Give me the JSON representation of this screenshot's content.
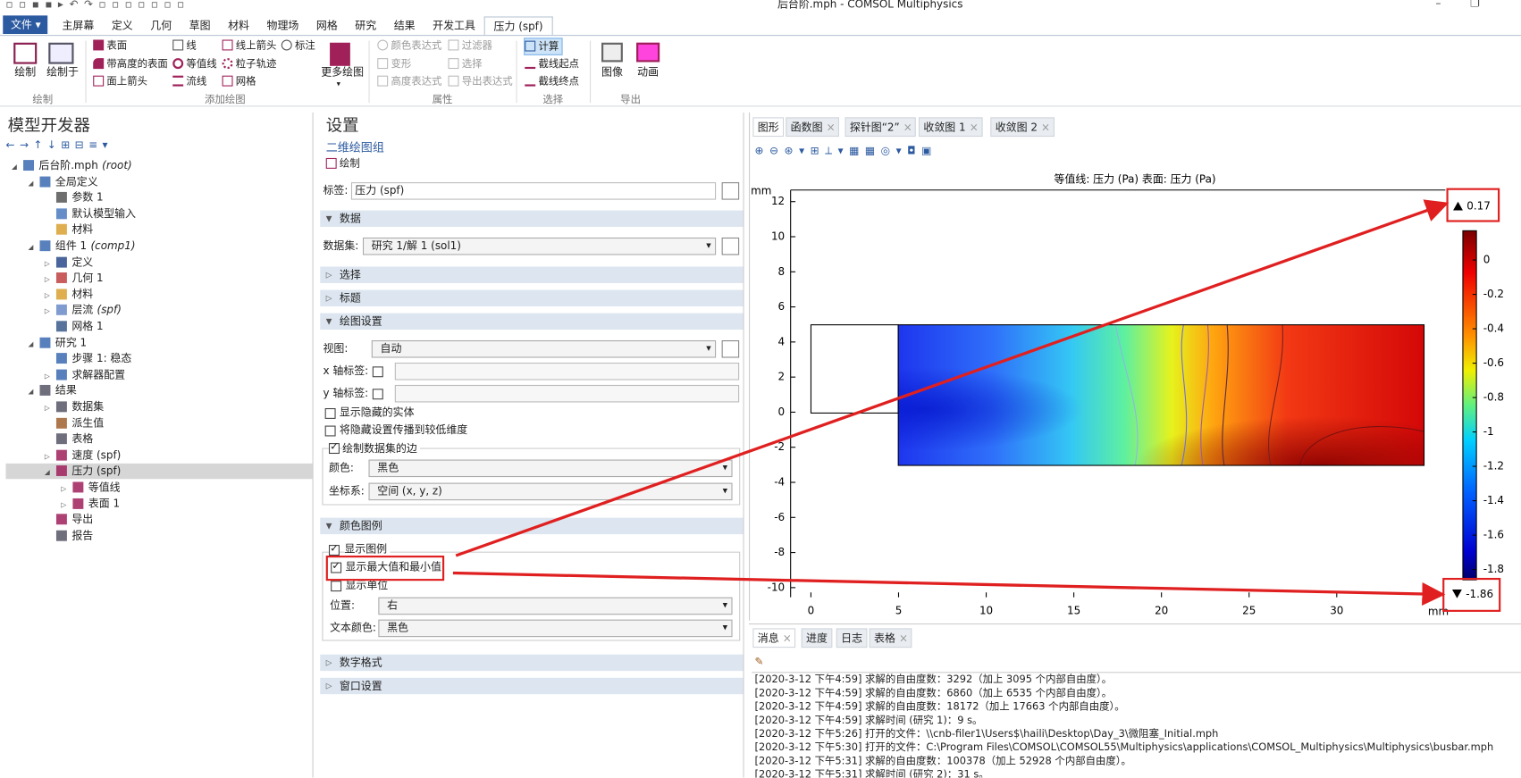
{
  "title_bar": {
    "title": "后台阶.mph - COMSOL Multiphysics"
  },
  "ribbon": {
    "file_tab": "文件",
    "tabs": [
      "主屏幕",
      "定义",
      "几何",
      "草图",
      "材料",
      "物理场",
      "网格",
      "研究",
      "结果",
      "开发工具",
      "压力 (spf)"
    ],
    "groups": [
      {
        "label": "绘制",
        "buttons": [
          "绘制",
          "绘制于"
        ]
      },
      {
        "label": "添加绘图",
        "buttons": [
          "表面",
          "带高度的表面",
          "面上箭头",
          "线",
          "等值线",
          "流线",
          "线上箭头",
          "粒子轨迹",
          "网格",
          "标注",
          "更多绘图"
        ]
      },
      {
        "label": "属性",
        "buttons": [
          "颜色表达式",
          "变形",
          "高度表达式",
          "过滤器",
          "选择",
          "导出表达式"
        ]
      },
      {
        "label": "选择",
        "buttons": [
          "计算",
          "截线起点",
          "截线终点"
        ]
      },
      {
        "label": "导出",
        "buttons": [
          "图像",
          "动画"
        ]
      }
    ]
  },
  "model_builder": {
    "title": "模型开发器",
    "nodes": [
      {
        "label": "后台阶.mph",
        "suffix": "(root)"
      },
      {
        "label": "全局定义"
      },
      {
        "label": "参数 1"
      },
      {
        "label": "默认模型输入"
      },
      {
        "label": "材料"
      },
      {
        "label": "组件 1",
        "suffix": "(comp1)"
      },
      {
        "label": "定义"
      },
      {
        "label": "几何 1"
      },
      {
        "label": "材料"
      },
      {
        "label": "层流",
        "suffix": "(spf)"
      },
      {
        "label": "网格 1"
      },
      {
        "label": "研究 1"
      },
      {
        "label": "步骤 1: 稳态"
      },
      {
        "label": "求解器配置"
      },
      {
        "label": "结果"
      },
      {
        "label": "数据集"
      },
      {
        "label": "派生值"
      },
      {
        "label": "表格"
      },
      {
        "label": "速度 (spf)"
      },
      {
        "label": "压力 (spf)"
      },
      {
        "label": "等值线"
      },
      {
        "label": "表面 1"
      },
      {
        "label": "导出"
      },
      {
        "label": "报告"
      }
    ]
  },
  "settings": {
    "title": "设置",
    "subtitle": "二维绘图组",
    "action": "绘制",
    "label_field": {
      "label": "标签:",
      "value": "压力 (spf)"
    },
    "section_titles": [
      "数据",
      "选择",
      "标题",
      "绘图设置",
      "颜色图例",
      "数字格式",
      "窗口设置"
    ],
    "dataset": {
      "label": "数据集:",
      "value": "研究 1/解 1 (sol1)"
    },
    "plot_settings": {
      "view": {
        "label": "视图:",
        "value": "自动"
      },
      "x_axis_label": {
        "text": "x 轴标签:",
        "checked": false
      },
      "y_axis_label": {
        "text": "y 轴标签:",
        "checked": false
      },
      "show_hidden": {
        "text": "显示隐藏的实体",
        "checked": false
      },
      "propagate": {
        "text": "将隐藏设置传播到较低维度",
        "checked": false
      },
      "plot_edges": {
        "text": "绘制数据集的边",
        "checked": true
      },
      "color": {
        "label": "颜色:",
        "value": "黑色"
      },
      "frame": {
        "label": "坐标系:",
        "value": "空间  (x, y, z)"
      }
    },
    "color_legend": {
      "show_legend": {
        "text": "显示图例",
        "checked": true
      },
      "show_max_min": {
        "text": "显示最大值和最小值",
        "checked": true
      },
      "show_units": {
        "text": "显示单位",
        "checked": false
      },
      "position": {
        "label": "位置:",
        "value": "右"
      },
      "text_color": {
        "label": "文本颜色:",
        "value": "黑色"
      }
    }
  },
  "graphics": {
    "tabs": [
      "图形",
      "函数图",
      "探针图“2”",
      "收敛图 1",
      "收敛图 2"
    ],
    "plot": {
      "title": "等值线: 压力 (Pa)  表面: 压力 (Pa)",
      "x_unit": "mm",
      "y_unit": "mm",
      "xlim": [
        -1.16,
        36.2
      ],
      "ylim": [
        -10.55,
        12.66
      ],
      "xticks": [
        0,
        5,
        10,
        15,
        20,
        25,
        30
      ],
      "yticks": [
        -10,
        -8,
        -6,
        -4,
        -2,
        0,
        2,
        4,
        6,
        8,
        10,
        12
      ],
      "colorbar": {
        "max": 0.17,
        "min": -1.86,
        "ticks": [
          0,
          -0.2,
          -0.4,
          -0.6,
          -0.8,
          -1,
          -1.2,
          -1.4,
          -1.6,
          -1.8
        ]
      }
    }
  },
  "messages": {
    "tabs": [
      "消息",
      "进度",
      "日志",
      "表格"
    ],
    "lines": [
      "[2020-3-12 下午4:59] 求解的自由度数：3292（加上 3095 个内部自由度）。",
      "[2020-3-12 下午4:59] 求解的自由度数：6860（加上 6535 个内部自由度）。",
      "[2020-3-12 下午4:59] 求解的自由度数：18172（加上 17663 个内部自由度）。",
      "[2020-3-12 下午4:59] 求解时间 (研究 1)：9 s。",
      "[2020-3-12 下午5:26] 打开的文件：\\\\cnb-filer1\\Users$\\haili\\Desktop\\Day_3\\微阻塞_Initial.mph",
      "[2020-3-12 下午5:30] 打开的文件：C:\\Program Files\\COMSOL\\COMSOL55\\Multiphysics\\applications\\COMSOL_Multiphysics\\Multiphysics\\busbar.mph",
      "[2020-3-12 下午5:31] 求解的自由度数：100378（加上 52928 个内部自由度）。",
      "[2020-3-12 下午5:31] 求解时间 (研究 2)：31 s。"
    ]
  }
}
